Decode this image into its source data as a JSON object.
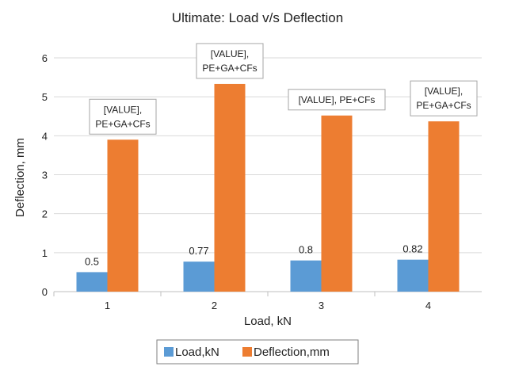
{
  "chart_data": {
    "type": "bar",
    "title": "Ultimate: Load v/s Deflection",
    "xlabel": "Load, kN",
    "ylabel": "Deflection, mm",
    "categories": [
      "1",
      "2",
      "3",
      "4"
    ],
    "ylim": [
      0,
      6
    ],
    "yticks": [
      0,
      1,
      2,
      3,
      4,
      5,
      6
    ],
    "grid": true,
    "legend_position": "bottom",
    "series": [
      {
        "name": "Load,kN",
        "color": "#5b9bd5",
        "values": [
          0.5,
          0.77,
          0.8,
          0.82
        ],
        "labels": [
          "0.5",
          "0.77",
          "0.8",
          "0.82"
        ]
      },
      {
        "name": "Deflection,mm",
        "color": "#ed7d31",
        "values": [
          3.9,
          5.33,
          4.52,
          4.37
        ],
        "callouts": [
          [
            "[VALUE],",
            "PE+GA+CFs"
          ],
          [
            "[VALUE],",
            "PE+GA+CFs"
          ],
          [
            "[VALUE], PE+CFs"
          ],
          [
            "[VALUE],",
            "PE+GA+CFs"
          ]
        ]
      }
    ]
  }
}
